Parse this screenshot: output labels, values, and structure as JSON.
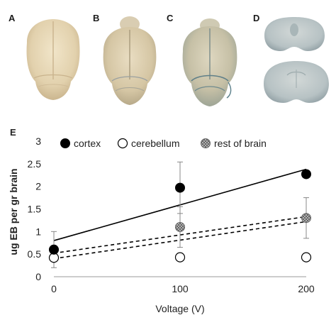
{
  "panels": {
    "a_label": "A",
    "b_label": "B",
    "c_label": "C",
    "d_label": "D",
    "e_label": "E"
  },
  "colors": {
    "photo_background": "#ffffff",
    "brain_cream": "#e6d6b5",
    "brain_tinted": "#d5ccb0",
    "slice_blue_grey": "#b9c4c7"
  },
  "chart_data": {
    "type": "scatter",
    "title": "",
    "xlabel": "Voltage (V)",
    "ylabel": "ug EB per gr brain",
    "x_ticks": [
      "0",
      "100",
      "200"
    ],
    "y_ticks": [
      "0",
      "0.5",
      "1",
      "1.5",
      "2",
      "2.5",
      "3"
    ],
    "xlim": [
      0,
      200
    ],
    "ylim": [
      0,
      3
    ],
    "legend_position": "top",
    "grid": false,
    "series": [
      {
        "name": "cortex",
        "marker": "filled-circle",
        "color": "#000000",
        "x": [
          0,
          100,
          200
        ],
        "y": [
          0.6,
          1.97,
          2.27
        ],
        "error": [
          0.4,
          0.57,
          0
        ],
        "trendline": {
          "style": "solid",
          "y_start": 0.8,
          "y_end": 2.38
        }
      },
      {
        "name": "cerebellum",
        "marker": "open-circle",
        "color": "#000000",
        "x": [
          0,
          100,
          200
        ],
        "y": [
          0.42,
          0.43,
          0.43
        ],
        "error": [
          0,
          0,
          0
        ],
        "trendline": null
      },
      {
        "name": "rest of brain",
        "marker": "hatched-circle",
        "color": "#9a9a9a",
        "x": [
          0,
          100,
          200
        ],
        "y": [
          0.6,
          1.1,
          1.3
        ],
        "error": [
          0,
          0.45,
          0.45
        ],
        "trendline": {
          "style": "dashed",
          "y_start": 0.52,
          "y_end": 1.33
        }
      }
    ],
    "extra_trendline": {
      "style": "dashed",
      "y_start": 0.4,
      "y_end": 1.22
    }
  }
}
